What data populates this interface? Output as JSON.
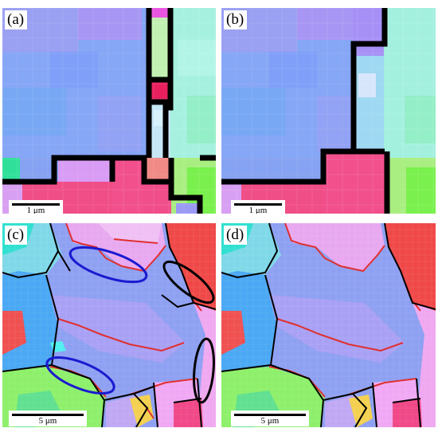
{
  "panels": [
    {
      "label": "(a)",
      "scale_text": "1 μm"
    },
    {
      "label": "(b)",
      "scale_text": "1 μm"
    },
    {
      "label": "(c)",
      "scale_text": "5 μm"
    },
    {
      "label": "(d)",
      "scale_text": "5 μm"
    }
  ],
  "colors": {
    "grain_blue": "#7fa2f3",
    "grain_violet": "#a68ef5",
    "grain_cyan": "#9ff2dc",
    "grain_magenta": "#ff4a8e",
    "grain_green": "#8af56a",
    "grain_red": "#ff4b4b",
    "grain_pink": "#f0a0f0",
    "high_angle_boundary": "#000000",
    "low_angle_boundary": "#e03030",
    "highlight_blue_ellipse": "#1a1ad0",
    "highlight_black_ellipse": "#000000"
  }
}
